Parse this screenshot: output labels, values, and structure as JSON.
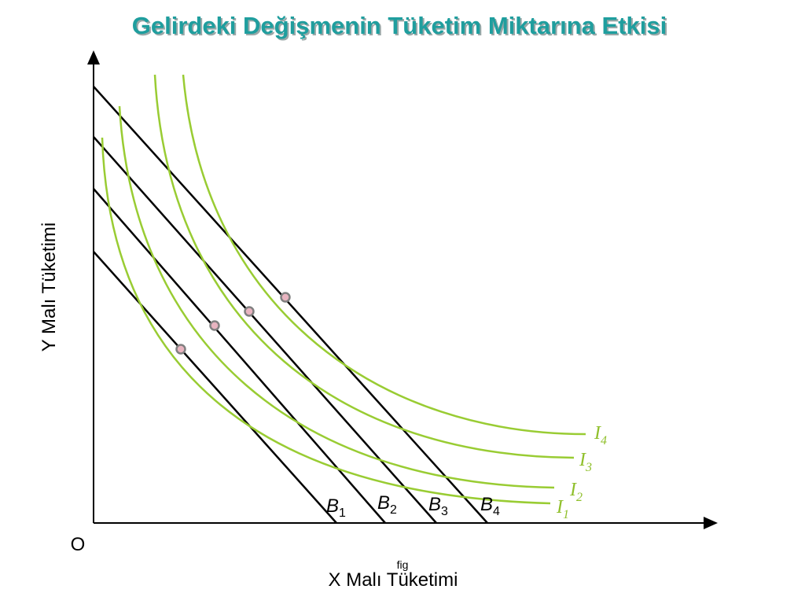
{
  "title": "Gelirdeki Değişmenin Tüketim Miktarına Etkisi",
  "y_axis_label": "Y Malı Tüketimi",
  "x_axis_label": "X Malı Tüketimi",
  "origin_label": "O",
  "figure_note": "fig",
  "budget_lines": [
    {
      "letter": "B",
      "index": "1"
    },
    {
      "letter": "B",
      "index": "2"
    },
    {
      "letter": "B",
      "index": "3"
    },
    {
      "letter": "B",
      "index": "4"
    }
  ],
  "indifference_curves": [
    {
      "letter": "I",
      "index": "1"
    },
    {
      "letter": "I",
      "index": "2"
    },
    {
      "letter": "I",
      "index": "3"
    },
    {
      "letter": "I",
      "index": "4"
    }
  ]
}
